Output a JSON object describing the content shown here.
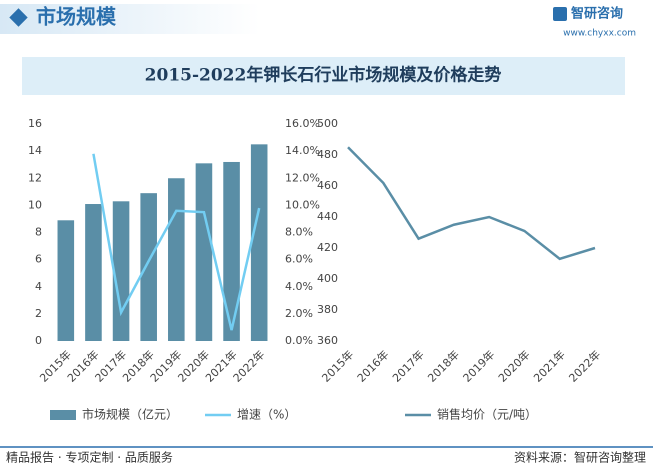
{
  "header": {
    "title": "市场规模",
    "logo": "智研咨询",
    "url": "www.chyxx.com"
  },
  "title": "2015-2022年钾长石行业市场规模及价格走势",
  "chart_data": [
    {
      "type": "bar",
      "categories": [
        "2015年",
        "2016年",
        "2017年",
        "2018年",
        "2019年",
        "2020年",
        "2021年",
        "2022年"
      ],
      "series": [
        {
          "name": "市场规模（亿元）",
          "type": "bar",
          "color": "#5a8ea6",
          "values": [
            8.9,
            10.1,
            10.3,
            10.9,
            12.0,
            13.1,
            13.2,
            14.5
          ]
        },
        {
          "name": "增速（%）",
          "type": "line",
          "axis": "y2",
          "color": "#72cdf2",
          "values": [
            null,
            13.8,
            2.1,
            5.9,
            9.6,
            9.5,
            0.8,
            9.8
          ]
        }
      ],
      "ylim": [
        0,
        16
      ],
      "yticks": [
        0,
        2,
        4,
        6,
        8,
        10,
        12,
        14,
        16
      ],
      "y2lim": [
        0,
        16
      ],
      "y2ticks": [
        {
          "value": 0,
          "label": "0.0%"
        },
        {
          "value": 2,
          "label": "2.0%"
        },
        {
          "value": 4,
          "label": "4.0%"
        },
        {
          "value": 6,
          "label": "6.0%"
        },
        {
          "value": 8,
          "label": "8.0%"
        },
        {
          "value": 10,
          "label": "10.0%"
        },
        {
          "value": 12,
          "label": "12.0%"
        },
        {
          "value": 14,
          "label": "14.0%"
        },
        {
          "value": 16,
          "label": "16.0%"
        }
      ]
    },
    {
      "type": "line",
      "categories": [
        "2015年",
        "2016年",
        "2017年",
        "2018年",
        "2019年",
        "2020年",
        "2021年",
        "2022年"
      ],
      "series": [
        {
          "name": "销售均价（元/吨）",
          "color": "#5a8ea6",
          "values": [
            485,
            462,
            426,
            435,
            440,
            431,
            413,
            420
          ]
        }
      ],
      "ylim": [
        360,
        500
      ],
      "yticks": [
        360,
        380,
        400,
        420,
        440,
        460,
        480,
        500
      ]
    }
  ],
  "footer": {
    "left": "精品报告 · 专项定制 · 品质服务",
    "source": "资料来源：智研咨询整理"
  }
}
